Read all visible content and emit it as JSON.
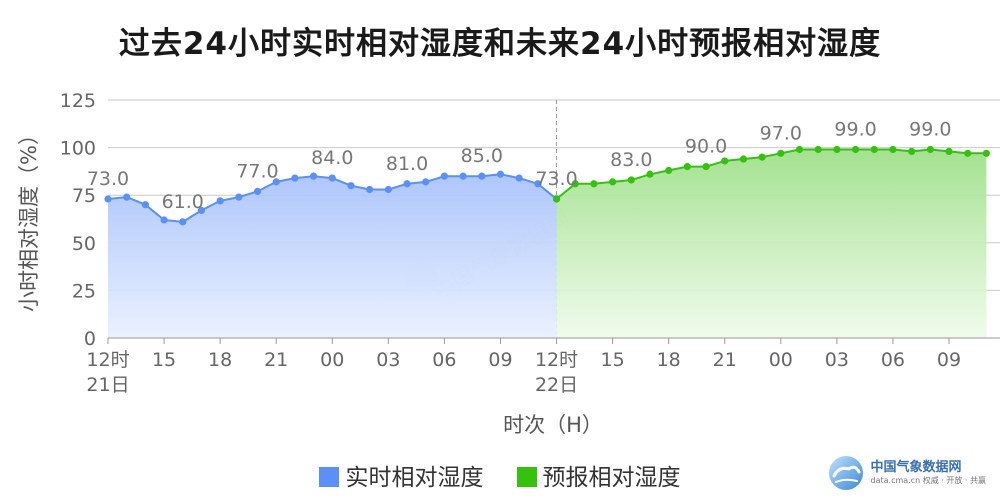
{
  "chart_data": {
    "type": "area",
    "title": "过去24小时实时相对湿度和未来24小时预报相对湿度",
    "xlabel": "时次（H）",
    "ylabel": "小时相对湿度（%）",
    "ylim": [
      0,
      125
    ],
    "yticks": [
      "0",
      "25",
      "50",
      "75",
      "100",
      "125"
    ],
    "grid": true,
    "legend_position": "bottom",
    "x_ticks": [
      {
        "hour": 0,
        "label": "12时",
        "sublabel": "21日"
      },
      {
        "hour": 3,
        "label": "15"
      },
      {
        "hour": 6,
        "label": "18"
      },
      {
        "hour": 9,
        "label": "21"
      },
      {
        "hour": 12,
        "label": "00"
      },
      {
        "hour": 15,
        "label": "03"
      },
      {
        "hour": 18,
        "label": "06"
      },
      {
        "hour": 21,
        "label": "09"
      },
      {
        "hour": 24,
        "label": "12时",
        "sublabel": "22日"
      },
      {
        "hour": 27,
        "label": "15"
      },
      {
        "hour": 30,
        "label": "18"
      },
      {
        "hour": 33,
        "label": "21"
      },
      {
        "hour": 36,
        "label": "00"
      },
      {
        "hour": 39,
        "label": "03"
      },
      {
        "hour": 42,
        "label": "06"
      },
      {
        "hour": 45,
        "label": "09"
      }
    ],
    "divider_hour": 24,
    "series": [
      {
        "name": "实时相对湿度",
        "color": "#5b8ff9",
        "x": [
          0,
          1,
          2,
          3,
          4,
          5,
          6,
          7,
          8,
          9,
          10,
          11,
          12,
          13,
          14,
          15,
          16,
          17,
          18,
          19,
          20,
          21,
          22,
          23,
          24
        ],
        "values": [
          73,
          74,
          70,
          62,
          61,
          67,
          72,
          74,
          77,
          82,
          84,
          85,
          84,
          80,
          78,
          78,
          81,
          82,
          85,
          85,
          85,
          86,
          84,
          81,
          73
        ],
        "labels": [
          {
            "hour": 0,
            "value": 73,
            "text": "73.0"
          },
          {
            "hour": 4,
            "value": 61,
            "text": "61.0"
          },
          {
            "hour": 8,
            "value": 77,
            "text": "77.0"
          },
          {
            "hour": 12,
            "value": 84,
            "text": "84.0"
          },
          {
            "hour": 16,
            "value": 81,
            "text": "81.0"
          },
          {
            "hour": 20,
            "value": 85,
            "text": "85.0"
          }
        ]
      },
      {
        "name": "预报相对湿度",
        "color": "#34c20f",
        "x": [
          24,
          25,
          26,
          27,
          28,
          29,
          30,
          31,
          32,
          33,
          34,
          35,
          36,
          37,
          38,
          39,
          40,
          41,
          42,
          43,
          44,
          45,
          46,
          47
        ],
        "values": [
          73,
          81,
          81,
          82,
          83,
          86,
          88,
          90,
          90,
          93,
          94,
          95,
          97,
          99,
          99,
          99,
          99,
          99,
          99,
          98,
          99,
          98,
          97,
          97
        ],
        "labels": [
          {
            "hour": 24,
            "value": 73,
            "text": "73.0"
          },
          {
            "hour": 28,
            "value": 83,
            "text": "83.0"
          },
          {
            "hour": 32,
            "value": 90,
            "text": "90.0"
          },
          {
            "hour": 36,
            "value": 97,
            "text": "97.0"
          },
          {
            "hour": 40,
            "value": 99,
            "text": "99.0"
          },
          {
            "hour": 44,
            "value": 99,
            "text": "99.0"
          }
        ]
      }
    ]
  },
  "watermark": "中国气象数据网",
  "brand": {
    "name": "中国气象数据网",
    "url_line": "data.cma.cn 权威 · 开放 · 共赢"
  }
}
